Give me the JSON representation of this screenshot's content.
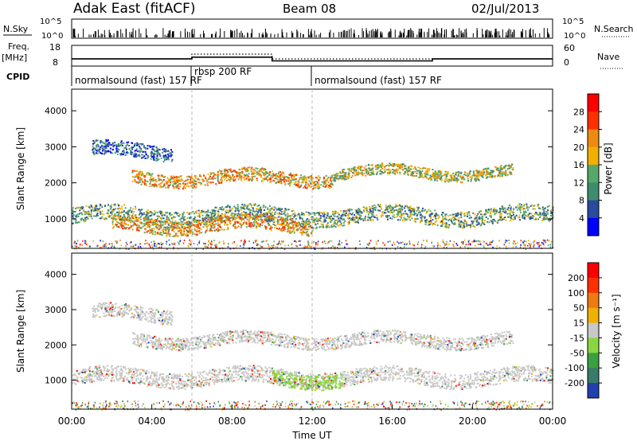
{
  "header": {
    "site": "Adak East (fitACF)",
    "beam": "Beam 08",
    "date": "02/Jul/2013"
  },
  "top_panel": {
    "nsky_label": "N.Sky",
    "nsky_ticks": [
      "10^5",
      "10^0"
    ],
    "nsearch_label": "N.Search",
    "freq_label": "Freq.",
    "freq_unit": "[MHz]",
    "freq_ticks": [
      "18",
      "8"
    ],
    "nave_ticks": [
      "60",
      "0"
    ],
    "nave_label": "Nave",
    "cpid_label": "CPID",
    "cpid_segments": [
      {
        "label": "normalsound (fast) 157 RF",
        "start_h": 0,
        "end_h": 6
      },
      {
        "label": "rbsp 200 RF",
        "start_h": 6,
        "end_h": 12
      },
      {
        "label": "normalsound (fast) 157 RF",
        "start_h": 12,
        "end_h": 24
      }
    ],
    "freq_steps": [
      {
        "start_h": 0,
        "end_h": 6,
        "value": 11.5
      },
      {
        "start_h": 6,
        "end_h": 10,
        "value": 12.3
      },
      {
        "start_h": 10,
        "end_h": 18,
        "value": 10.5
      },
      {
        "start_h": 18,
        "end_h": 24,
        "value": 11.5
      }
    ]
  },
  "chart_data": [
    {
      "type": "heatmap",
      "title": "",
      "xlabel": "Time UT",
      "ylabel": "Slant Range [km]",
      "xlim": [
        0,
        24
      ],
      "ylim": [
        180,
        4600
      ],
      "yticks": [
        "1000",
        "2000",
        "3000",
        "4000"
      ],
      "colorbar": {
        "label": "Power [dB]",
        "ticks": [
          "4",
          "8",
          "12",
          "16",
          "20",
          "24",
          "28"
        ],
        "colors": [
          "#0000ff",
          "#2a4a9e",
          "#3f8b6e",
          "#55a86a",
          "#f0b000",
          "#ee8a10",
          "#ff3000",
          "#ff0000"
        ]
      },
      "bands": [
        {
          "center_km": 1100,
          "half_width_km": 220,
          "start_h": 0,
          "end_h": 24,
          "level": 3
        },
        {
          "center_km": 2150,
          "half_width_km": 180,
          "start_h": 3,
          "end_h": 13,
          "level": 5
        },
        {
          "center_km": 2300,
          "half_width_km": 150,
          "start_h": 13,
          "end_h": 22,
          "level": 4
        },
        {
          "center_km": 2900,
          "half_width_km": 200,
          "start_h": 1,
          "end_h": 5,
          "level": 2
        },
        {
          "center_km": 850,
          "half_width_km": 200,
          "start_h": 2,
          "end_h": 12,
          "level": 5
        }
      ]
    },
    {
      "type": "heatmap",
      "title": "",
      "xlabel": "Time UT",
      "ylabel": "Slant Range [km]",
      "xlim": [
        0,
        24
      ],
      "ylim": [
        180,
        4600
      ],
      "yticks": [
        "1000",
        "2000",
        "3000",
        "4000"
      ],
      "xticks": [
        "00:00",
        "04:00",
        "08:00",
        "12:00",
        "16:00",
        "20:00",
        "00:00"
      ],
      "colorbar": {
        "label": "Velocity [m s⁻¹]",
        "ticks": [
          "200",
          "100",
          "50",
          "15",
          "-15",
          "-50",
          "-100",
          "-200"
        ],
        "colors": [
          "#2040b0",
          "#3a7a6a",
          "#3aa040",
          "#8ad640",
          "#c8c8c8",
          "#f0b000",
          "#ee7a10",
          "#ff3000",
          "#ff0000"
        ]
      },
      "bands": [
        {
          "center_km": 1100,
          "half_width_km": 220,
          "start_h": 0,
          "end_h": 24,
          "level": 4
        },
        {
          "center_km": 2150,
          "half_width_km": 180,
          "start_h": 3,
          "end_h": 22,
          "level": 4
        },
        {
          "center_km": 1050,
          "half_width_km": 200,
          "start_h": 10,
          "end_h": 13.5,
          "level": 3
        },
        {
          "center_km": 2900,
          "half_width_km": 200,
          "start_h": 1,
          "end_h": 5,
          "level": 4
        }
      ]
    }
  ]
}
